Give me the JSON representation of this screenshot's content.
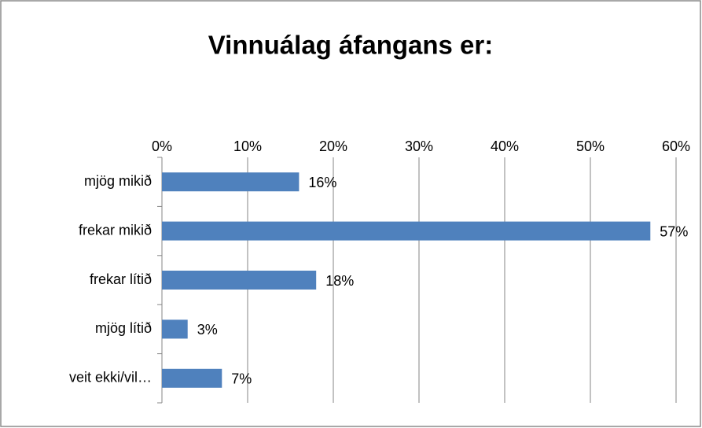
{
  "chart_data": {
    "type": "barh",
    "title": "Vinnuálag áfangans er:",
    "categories": [
      "mjög mikið",
      "frekar mikið",
      "frekar lítið",
      "mjög lítið",
      "veit ekki/vil…"
    ],
    "values": [
      16,
      57,
      18,
      3,
      7
    ],
    "value_labels": [
      "16%",
      "57%",
      "18%",
      "3%",
      "7%"
    ],
    "color": "#4f81bd",
    "xlim": [
      0,
      60
    ],
    "xticks": [
      {
        "value": 0,
        "label": "0%"
      },
      {
        "value": 10,
        "label": "10%"
      },
      {
        "value": 20,
        "label": "20%"
      },
      {
        "value": 30,
        "label": "30%"
      },
      {
        "value": 40,
        "label": "40%"
      },
      {
        "value": 50,
        "label": "50%"
      },
      {
        "value": 60,
        "label": "60%"
      }
    ],
    "grid": true
  }
}
